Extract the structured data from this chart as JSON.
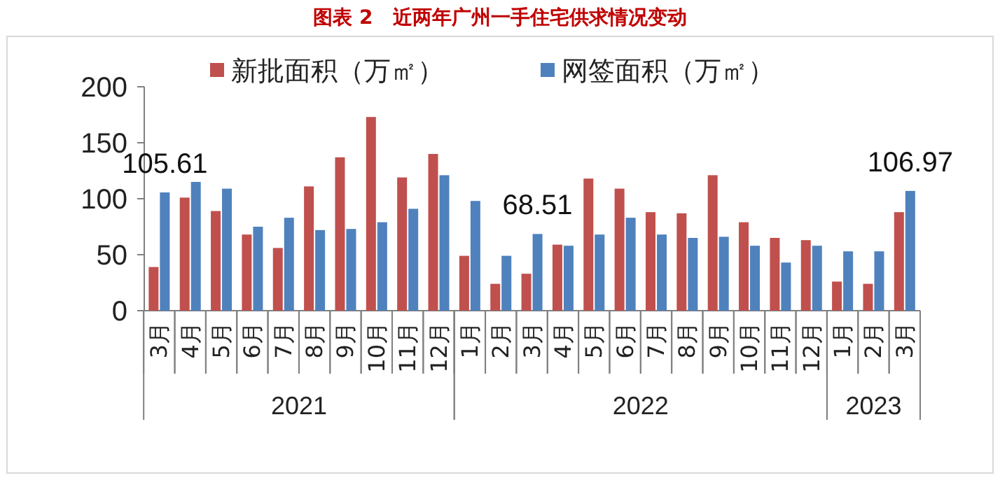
{
  "chart_data": {
    "type": "bar",
    "title": "图表 2　近两年广州一手住宅供求情况变动",
    "x": [
      "2021-03",
      "2021-04",
      "2021-05",
      "2021-06",
      "2021-07",
      "2021-08",
      "2021-09",
      "2021-10",
      "2021-11",
      "2021-12",
      "2022-01",
      "2022-02",
      "2022-03",
      "2022-04",
      "2022-05",
      "2022-06",
      "2022-07",
      "2022-08",
      "2022-09",
      "2022-10",
      "2022-11",
      "2022-12",
      "2023-01",
      "2023-02",
      "2023-03"
    ],
    "xticks": [
      {
        "value": "2021-03",
        "label": "3月"
      },
      {
        "value": "2021-04",
        "label": "4月"
      },
      {
        "value": "2021-05",
        "label": "5月"
      },
      {
        "value": "2021-06",
        "label": "6月"
      },
      {
        "value": "2021-07",
        "label": "7月"
      },
      {
        "value": "2021-08",
        "label": "8月"
      },
      {
        "value": "2021-09",
        "label": "9月"
      },
      {
        "value": "2021-10",
        "label": "10月"
      },
      {
        "value": "2021-11",
        "label": "11月"
      },
      {
        "value": "2021-12",
        "label": "12月"
      },
      {
        "value": "2022-01",
        "label": "1月"
      },
      {
        "value": "2022-02",
        "label": "2月"
      },
      {
        "value": "2022-03",
        "label": "3月"
      },
      {
        "value": "2022-04",
        "label": "4月"
      },
      {
        "value": "2022-05",
        "label": "5月"
      },
      {
        "value": "2022-06",
        "label": "6月"
      },
      {
        "value": "2022-07",
        "label": "7月"
      },
      {
        "value": "2022-08",
        "label": "8月"
      },
      {
        "value": "2022-09",
        "label": "9月"
      },
      {
        "value": "2022-10",
        "label": "10月"
      },
      {
        "value": "2022-11",
        "label": "11月"
      },
      {
        "value": "2022-12",
        "label": "12月"
      },
      {
        "value": "2023-01",
        "label": "1月"
      },
      {
        "value": "2023-02",
        "label": "2月"
      },
      {
        "value": "2023-03",
        "label": "3月"
      }
    ],
    "annotations": [
      "2021",
      "2022",
      "2023"
    ],
    "series": [
      {
        "name": "新批面积（万㎡）",
        "color": "#c0504d",
        "values": [
          39,
          101,
          89,
          68,
          56,
          111,
          137,
          173,
          119,
          140,
          49,
          24,
          33,
          59,
          118,
          109,
          88,
          87,
          121,
          79,
          65,
          63,
          26,
          24,
          88
        ]
      },
      {
        "name": "网签面积（万㎡）",
        "color": "#4f81bd",
        "values": [
          105.61,
          115,
          109,
          75,
          83,
          72,
          73,
          79,
          91,
          121,
          98,
          49,
          68.51,
          58,
          68,
          83,
          68,
          65,
          66,
          58,
          43,
          58,
          53,
          53,
          106.97
        ],
        "value_labels": [
          "105.61",
          null,
          null,
          null,
          null,
          null,
          null,
          null,
          null,
          null,
          null,
          null,
          "68.51",
          null,
          null,
          null,
          null,
          null,
          null,
          null,
          null,
          null,
          null,
          null,
          "106.97"
        ]
      }
    ],
    "xlim": [
      "2021-02-15",
      "2023-03-16"
    ],
    "ylim": [
      0,
      200
    ],
    "yticks": [
      0,
      50,
      100,
      150,
      200
    ],
    "legend": "top"
  }
}
